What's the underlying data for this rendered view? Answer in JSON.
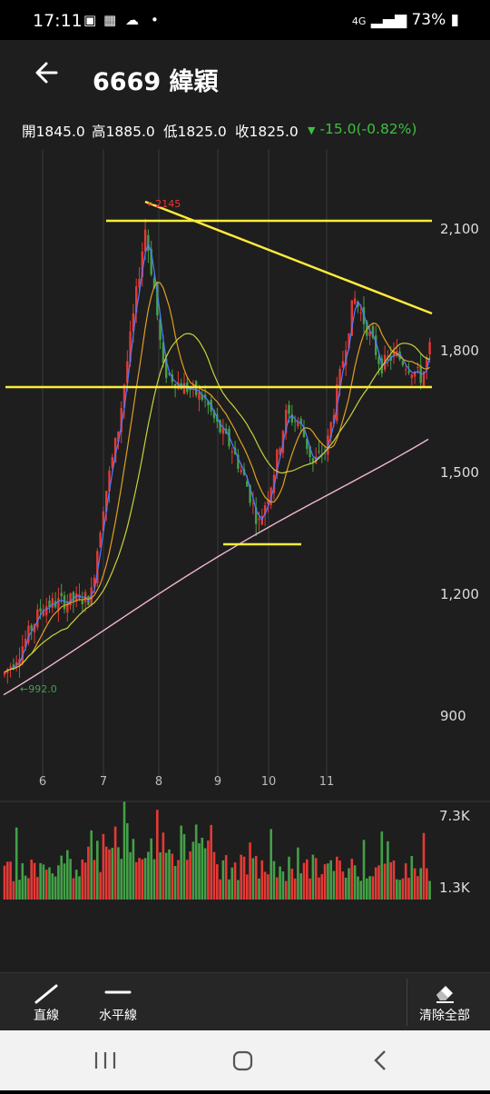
{
  "status": {
    "time": "17:11",
    "network": "4G",
    "battery": "73%"
  },
  "header": {
    "title": "6669 緯穎"
  },
  "quote": {
    "open_label": "開",
    "open": "1845.0",
    "high_label": "高",
    "high": "1885.0",
    "low_label": "低",
    "low": "1825.0",
    "close_label": "收",
    "close": "1825.0",
    "change_arrow": "▼",
    "change": "-15.0(-0.82%)",
    "change_color": "#3fbf3f"
  },
  "chart_data": {
    "type": "candlestick",
    "y_ticks": [
      "2,100",
      "1,800",
      "1,500",
      "1,200",
      "900"
    ],
    "x_ticks": [
      "6",
      "7",
      "8",
      "9",
      "10",
      "11"
    ],
    "high_marker": "←2145",
    "low_marker": "←992.0",
    "volume_ticks": [
      "7.3K",
      "1.3K"
    ],
    "colors": {
      "up": "#e53935",
      "down": "#43a047",
      "drawn_lines": "#ffeb3b",
      "ma5": "#4f7cff",
      "ma20": "#e0a020",
      "ma60": "#c8d23a",
      "ma120": "#f4b6d8"
    }
  },
  "toolbar": {
    "line_label": "直線",
    "hline_label": "水平線",
    "clear_label": "清除全部"
  }
}
